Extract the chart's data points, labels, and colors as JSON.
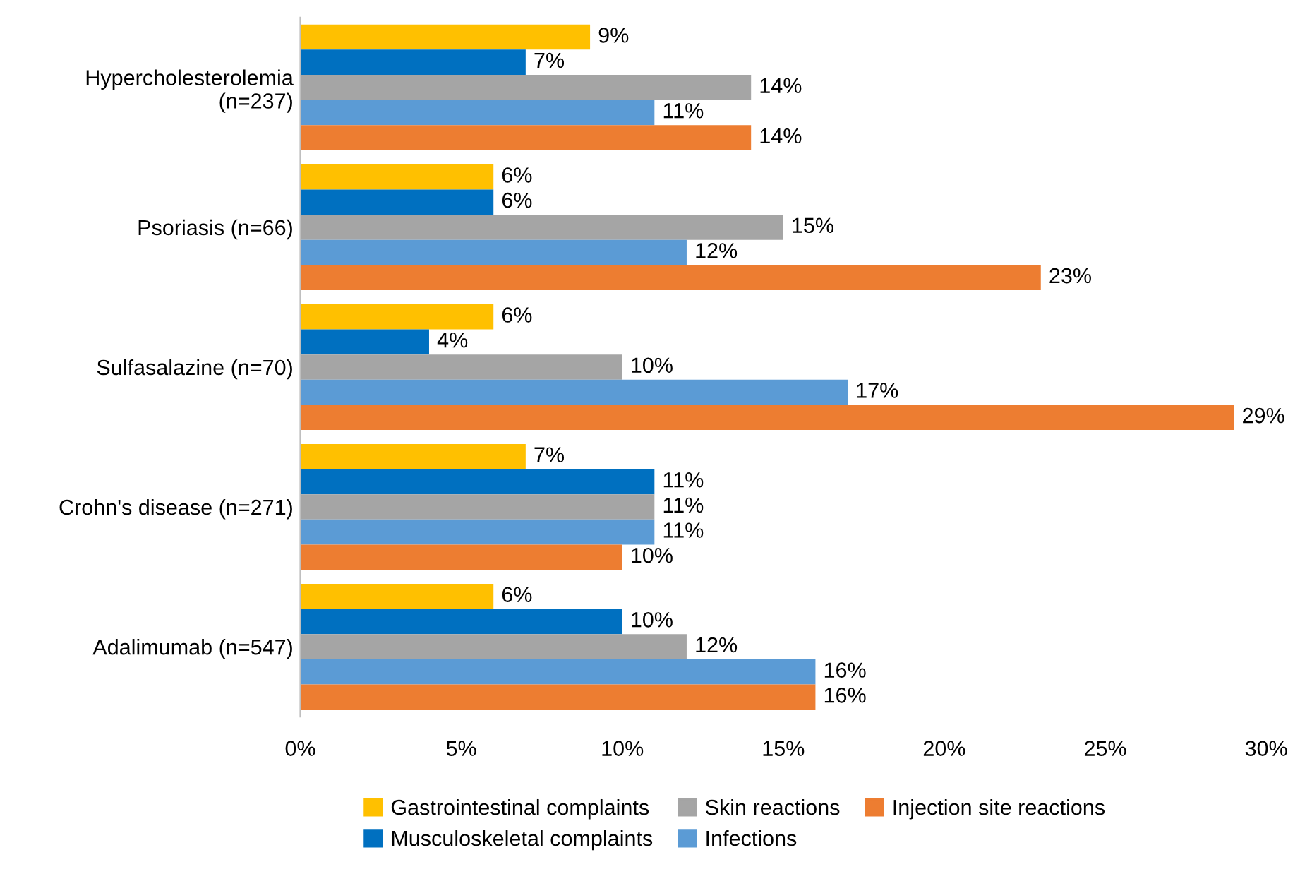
{
  "chart_data": {
    "type": "bar",
    "orientation": "horizontal",
    "categories": [
      "Hypercholesterolemia\n(n=237)",
      "Psoriasis (n=66)",
      "Sulfasalazine (n=70)",
      "Crohn's disease (n=271)",
      "Adalimumab (n=547)"
    ],
    "series": [
      {
        "name": "Gastrointestinal complaints",
        "color": "#ffc000",
        "values": [
          9,
          6,
          6,
          7,
          6
        ],
        "value_labels": [
          "9%",
          "6%",
          "6%",
          "7%",
          "6%"
        ]
      },
      {
        "name": "Musculoskeletal complaints",
        "color": "#0070c0",
        "values": [
          7,
          6,
          4,
          11,
          10
        ],
        "value_labels": [
          "7%",
          "6%",
          "4%",
          "11%",
          "10%"
        ]
      },
      {
        "name": "Skin reactions",
        "color": "#a5a5a5",
        "values": [
          14,
          15,
          10,
          11,
          12
        ],
        "value_labels": [
          "14%",
          "15%",
          "10%",
          "11%",
          "12%"
        ]
      },
      {
        "name": "Infections",
        "color": "#5b9bd5",
        "values": [
          11,
          12,
          17,
          11,
          16
        ],
        "value_labels": [
          "11%",
          "12%",
          "17%",
          "11%",
          "16%"
        ]
      },
      {
        "name": "Injection site reactions",
        "color": "#ed7d31",
        "values": [
          14,
          23,
          29,
          10,
          16
        ],
        "value_labels": [
          "14%",
          "23%",
          "29%",
          "10%",
          "16%"
        ]
      }
    ],
    "xlim": [
      0,
      30
    ],
    "xticks": [
      {
        "value": 0,
        "label": "0%"
      },
      {
        "value": 5,
        "label": "5%"
      },
      {
        "value": 10,
        "label": "10%"
      },
      {
        "value": 15,
        "label": "15%"
      },
      {
        "value": 20,
        "label": "20%"
      },
      {
        "value": 25,
        "label": "25%"
      },
      {
        "value": 30,
        "label": "30%"
      }
    ],
    "grid": false,
    "legend": "bottom"
  }
}
